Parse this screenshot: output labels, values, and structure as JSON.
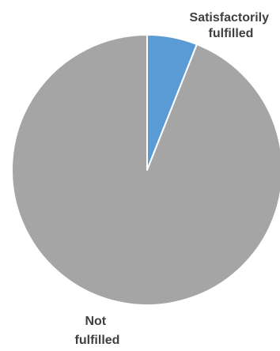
{
  "chart_data": {
    "type": "pie",
    "title": "",
    "slices": [
      {
        "label_lines": [
          "Satisfactorily",
          "fulfilled"
        ],
        "value": 6,
        "color": "#5b9bd5"
      },
      {
        "label_lines": [
          "Not",
          "fulfilled"
        ],
        "value": 94,
        "color": "#a5a5a5"
      }
    ],
    "start_angle_deg": 0,
    "direction": "clockwise",
    "slice_border_color": "#ffffff",
    "legend": "none"
  }
}
